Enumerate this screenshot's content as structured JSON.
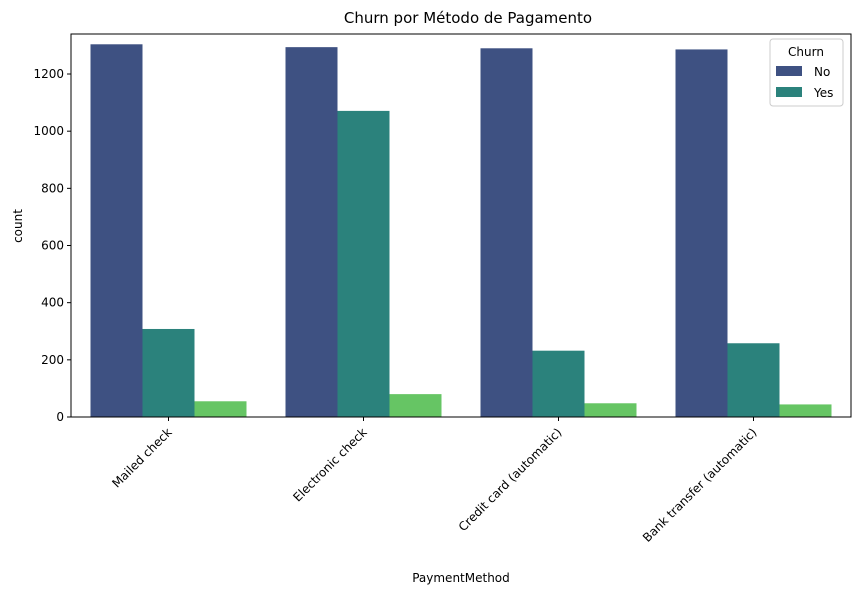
{
  "chart_data": {
    "type": "bar",
    "title": "Churn por Método de Pagamento",
    "xlabel": "PaymentMethod",
    "ylabel": "count",
    "categories": [
      "Mailed check",
      "Electronic check",
      "Credit card (automatic)",
      "Bank transfer (automatic)"
    ],
    "ylim": [
      0,
      1340
    ],
    "yticks": [
      0,
      200,
      400,
      600,
      800,
      1000,
      1200
    ],
    "grid": false,
    "legend": {
      "title": "Churn",
      "placement": "top-right",
      "entries": [
        "No",
        "Yes"
      ]
    },
    "series": [
      {
        "name": "No",
        "color": "#3e5182",
        "values": [
          1304,
          1294,
          1290,
          1286
        ]
      },
      {
        "name": "Yes",
        "color": "#2b827c",
        "values": [
          308,
          1071,
          232,
          258
        ]
      },
      {
        "color": "#66c564",
        "values": [
          55,
          80,
          48,
          44
        ]
      }
    ]
  }
}
